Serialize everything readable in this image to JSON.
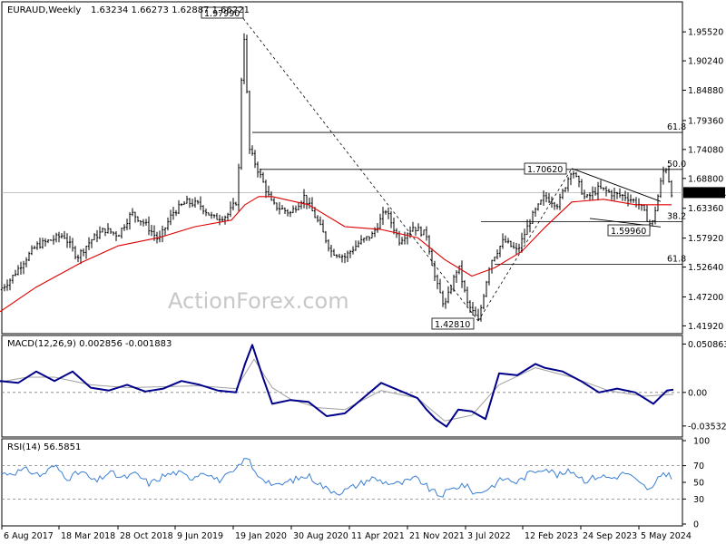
{
  "header": {
    "symbol": "EURAUD,Weekly",
    "ohlc": "1.63234 1.66273 1.62887 1.66221"
  },
  "watermark": "ActionForex.com",
  "colors": {
    "price": "#000000",
    "ma": "#e00000",
    "macd": "#00008b",
    "signal": "#a0a0a0",
    "rsi": "#3a7fd5",
    "fib": "#000000",
    "grid_dash": "#808080",
    "current_label_bg": "#000000"
  },
  "chart_data": [
    {
      "type": "line",
      "name": "price-panel",
      "title": "EURAUD,Weekly",
      "ylim": [
        1.405,
        2.01
      ],
      "y_ticks": [
        "1.95520",
        "1.90240",
        "1.84880",
        "1.79360",
        "1.74080",
        "1.68800",
        "1.63360",
        "1.57920",
        "1.52640",
        "1.47200",
        "1.41920"
      ],
      "current_price": "1.66221",
      "annotations": [
        {
          "label": "1.97990",
          "x": 268,
          "y": 1.9799
        },
        {
          "label": "1.70620",
          "x": 630,
          "y": 1.7062
        },
        {
          "label": "1.59960",
          "x": 718,
          "y": 1.5996
        },
        {
          "label": "1.42810",
          "x": 527,
          "y": 1.4281
        }
      ],
      "fib_levels": [
        {
          "label": "61.8",
          "y": 1.7719
        },
        {
          "label": "50.0",
          "y": 1.7045
        },
        {
          "label": "38.2",
          "y": 1.6093
        },
        {
          "label": "61.8",
          "y": 1.5316
        }
      ],
      "series": [
        {
          "key": "price",
          "x": [
            0,
            12,
            25,
            40,
            55,
            70,
            85,
            100,
            115,
            130,
            145,
            160,
            175,
            190,
            205,
            220,
            235,
            250,
            262,
            268,
            275,
            285,
            300,
            320,
            335,
            350,
            365,
            380,
            395,
            410,
            425,
            440,
            455,
            470,
            480,
            490,
            505,
            515,
            527,
            540,
            555,
            570,
            585,
            600,
            615,
            630,
            645,
            660,
            675,
            690,
            705,
            718,
            728,
            733,
            740
          ],
          "y": [
            1.485,
            1.505,
            1.535,
            1.565,
            1.575,
            1.585,
            1.545,
            1.575,
            1.595,
            1.585,
            1.625,
            1.605,
            1.575,
            1.625,
            1.645,
            1.64,
            1.615,
            1.62,
            1.65,
            1.9799,
            1.74,
            1.7,
            1.64,
            1.625,
            1.655,
            1.61,
            1.555,
            1.545,
            1.57,
            1.585,
            1.63,
            1.575,
            1.6,
            1.585,
            1.5,
            1.455,
            1.53,
            1.46,
            1.4281,
            1.535,
            1.575,
            1.555,
            1.615,
            1.655,
            1.64,
            1.7062,
            1.65,
            1.67,
            1.66,
            1.655,
            1.64,
            1.5996,
            1.68,
            1.715,
            1.6622
          ]
        },
        {
          "key": "ma",
          "x": [
            0,
            40,
            90,
            130,
            175,
            215,
            255,
            270,
            285,
            300,
            340,
            380,
            420,
            460,
            490,
            520,
            545,
            575,
            600,
            630,
            665,
            700,
            740
          ],
          "y": [
            1.445,
            1.49,
            1.535,
            1.565,
            1.58,
            1.6,
            1.612,
            1.64,
            1.655,
            1.655,
            1.64,
            1.6,
            1.595,
            1.58,
            1.54,
            1.51,
            1.525,
            1.555,
            1.598,
            1.645,
            1.65,
            1.64,
            1.64
          ]
        }
      ]
    },
    {
      "type": "line",
      "name": "macd-panel",
      "title": "MACD(12,26,9) 0.002856 -0.001883",
      "ylim": [
        -0.045,
        0.058
      ],
      "y_ticks": [
        "0.050863",
        "0.00",
        "-0.035322"
      ],
      "series": [
        {
          "key": "macd",
          "x": [
            0,
            20,
            40,
            60,
            80,
            100,
            120,
            140,
            160,
            180,
            200,
            220,
            240,
            260,
            270,
            278,
            290,
            300,
            320,
            340,
            360,
            380,
            400,
            420,
            440,
            460,
            470,
            480,
            492,
            505,
            520,
            535,
            550,
            570,
            590,
            600,
            620,
            640,
            660,
            680,
            700,
            720,
            735,
            742
          ],
          "y": [
            0.012,
            0.01,
            0.022,
            0.012,
            0.022,
            0.005,
            0.002,
            0.008,
            0.001,
            0.004,
            0.012,
            0.008,
            0.002,
            0.0,
            0.03,
            0.05,
            0.015,
            -0.012,
            -0.008,
            -0.01,
            -0.025,
            -0.022,
            -0.006,
            0.01,
            0.002,
            -0.006,
            -0.018,
            -0.028,
            -0.036,
            -0.018,
            -0.02,
            -0.028,
            0.02,
            0.018,
            0.03,
            0.026,
            0.022,
            0.012,
            0.0,
            0.004,
            0.0,
            -0.012,
            0.002,
            0.003
          ]
        },
        {
          "key": "signal",
          "x": [
            0,
            30,
            60,
            100,
            140,
            180,
            220,
            260,
            280,
            300,
            320,
            350,
            380,
            420,
            460,
            490,
            520,
            550,
            590,
            630,
            670,
            710,
            742
          ],
          "y": [
            0.011,
            0.016,
            0.016,
            0.008,
            0.005,
            0.006,
            0.007,
            0.004,
            0.035,
            0.005,
            -0.007,
            -0.016,
            -0.018,
            0.002,
            -0.006,
            -0.03,
            -0.024,
            0.008,
            0.026,
            0.016,
            0.002,
            -0.004,
            -0.002
          ]
        }
      ]
    },
    {
      "type": "line",
      "name": "rsi-panel",
      "title": "RSI(14) 56.5851",
      "ylim": [
        0,
        100
      ],
      "y_ticks": [
        "100",
        "70",
        "50",
        "30",
        "0"
      ],
      "series": [
        {
          "key": "rsi",
          "x": [
            0,
            15,
            30,
            45,
            60,
            75,
            90,
            105,
            120,
            135,
            150,
            165,
            180,
            195,
            210,
            225,
            240,
            255,
            265,
            272,
            280,
            290,
            305,
            320,
            340,
            360,
            375,
            390,
            410,
            425,
            440,
            460,
            475,
            485,
            495,
            510,
            525,
            540,
            555,
            570,
            585,
            600,
            615,
            630,
            645,
            660,
            675,
            690,
            705,
            718,
            730,
            738,
            742
          ],
          "y": [
            60,
            62,
            65,
            58,
            70,
            55,
            63,
            50,
            62,
            55,
            60,
            48,
            58,
            62,
            55,
            64,
            52,
            60,
            70,
            82,
            62,
            55,
            45,
            52,
            58,
            42,
            38,
            45,
            55,
            50,
            48,
            55,
            40,
            34,
            40,
            48,
            36,
            44,
            55,
            50,
            62,
            68,
            58,
            64,
            52,
            58,
            55,
            62,
            48,
            40,
            62,
            58,
            57
          ]
        }
      ]
    }
  ],
  "x_axis": {
    "labels": [
      "6 Aug 2017",
      "18 Mar 2018",
      "28 Oct 2018",
      "9 Jun 2019",
      "19 Jan 2020",
      "30 Aug 2020",
      "11 Apr 2021",
      "21 Nov 2021",
      "3 Jul 2022",
      "12 Feb 2023",
      "24 Sep 2023",
      "5 May 2024"
    ]
  }
}
